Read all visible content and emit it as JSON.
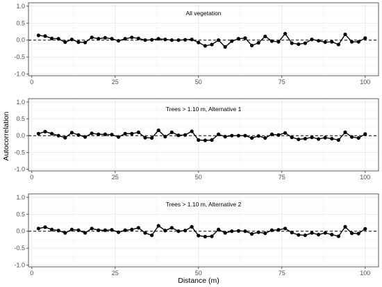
{
  "figure": {
    "ylabel": "Autocorrelation",
    "xlabel": "Distance (m)"
  },
  "chart_data": [
    {
      "type": "line",
      "title": "All vegetation",
      "xlabel": "",
      "ylabel": "",
      "xlim": [
        -1,
        104
      ],
      "ylim": [
        -1.05,
        1.1
      ],
      "xticks": [
        0,
        25,
        50,
        75,
        100
      ],
      "yticks": [
        -1.0,
        -0.5,
        0.0,
        0.5,
        1.0
      ],
      "reference_line": 0,
      "x": [
        2,
        4,
        6,
        8,
        10,
        12,
        14,
        16,
        18,
        20,
        22,
        24,
        26,
        28,
        30,
        32,
        34,
        36,
        38,
        40,
        42,
        44,
        46,
        48,
        50,
        52,
        54,
        56,
        58,
        60,
        62,
        64,
        66,
        68,
        70,
        72,
        74,
        76,
        78,
        80,
        82,
        84,
        86,
        88,
        90,
        92,
        94,
        96,
        98,
        100
      ],
      "values": [
        0.14,
        0.12,
        0.05,
        0.04,
        -0.06,
        0.02,
        -0.06,
        -0.07,
        0.08,
        0.04,
        0.07,
        0.04,
        -0.02,
        0.04,
        0.08,
        0.05,
        0.0,
        0.01,
        0.04,
        0.02,
        0.0,
        0.0,
        0.01,
        0.02,
        -0.07,
        -0.17,
        -0.13,
        0.0,
        -0.2,
        -0.03,
        0.04,
        0.06,
        -0.16,
        -0.08,
        0.11,
        -0.03,
        -0.05,
        0.19,
        -0.09,
        -0.12,
        -0.09,
        0.02,
        -0.02,
        -0.06,
        -0.05,
        -0.13,
        0.17,
        -0.05,
        -0.05,
        0.06
      ]
    },
    {
      "type": "line",
      "title": "Trees > 1.10 m, Alternative 1",
      "xlabel": "",
      "ylabel": "",
      "xlim": [
        -1,
        104
      ],
      "ylim": [
        -1.05,
        1.1
      ],
      "xticks": [
        0,
        25,
        50,
        75,
        100
      ],
      "yticks": [
        -1.0,
        -0.5,
        0.0,
        0.5,
        1.0
      ],
      "reference_line": 0,
      "x": [
        2,
        4,
        6,
        8,
        10,
        12,
        14,
        16,
        18,
        20,
        22,
        24,
        26,
        28,
        30,
        32,
        34,
        36,
        38,
        40,
        42,
        44,
        46,
        48,
        50,
        52,
        54,
        56,
        58,
        60,
        62,
        64,
        66,
        68,
        70,
        72,
        74,
        76,
        78,
        80,
        82,
        84,
        86,
        88,
        90,
        92,
        94,
        96,
        98,
        100
      ],
      "values": [
        0.06,
        0.12,
        0.06,
        0.0,
        -0.06,
        0.09,
        0.02,
        -0.04,
        0.07,
        0.04,
        0.04,
        0.03,
        -0.04,
        0.06,
        0.06,
        0.1,
        -0.06,
        -0.07,
        0.16,
        -0.03,
        0.1,
        0.01,
        0.02,
        0.13,
        -0.13,
        -0.14,
        -0.13,
        0.04,
        -0.03,
        0.0,
        0.0,
        0.0,
        -0.07,
        -0.01,
        -0.07,
        0.04,
        0.02,
        0.08,
        -0.05,
        -0.11,
        -0.09,
        -0.05,
        -0.1,
        -0.06,
        -0.09,
        -0.13,
        0.1,
        -0.04,
        -0.07,
        0.05
      ]
    },
    {
      "type": "line",
      "title": "Trees > 1.10 m, Alternative 2",
      "xlabel": "",
      "ylabel": "",
      "xlim": [
        -1,
        104
      ],
      "ylim": [
        -1.05,
        1.1
      ],
      "xticks": [
        0,
        25,
        50,
        75,
        100
      ],
      "yticks": [
        -1.0,
        -0.5,
        0.0,
        0.5,
        1.0
      ],
      "reference_line": 0,
      "x": [
        2,
        4,
        6,
        8,
        10,
        12,
        14,
        16,
        18,
        20,
        22,
        24,
        26,
        28,
        30,
        32,
        34,
        36,
        38,
        40,
        42,
        44,
        46,
        48,
        50,
        52,
        54,
        56,
        58,
        60,
        62,
        64,
        66,
        68,
        70,
        72,
        74,
        76,
        78,
        80,
        82,
        84,
        86,
        88,
        90,
        92,
        94,
        96,
        98,
        100
      ],
      "values": [
        0.08,
        0.12,
        0.05,
        0.02,
        -0.05,
        0.05,
        0.03,
        -0.05,
        0.08,
        0.03,
        0.03,
        0.04,
        -0.03,
        0.03,
        0.05,
        0.1,
        -0.05,
        -0.12,
        0.16,
        0.02,
        0.1,
        0.0,
        0.02,
        0.13,
        -0.13,
        -0.16,
        -0.15,
        0.05,
        -0.05,
        0.0,
        0.01,
        0.0,
        -0.08,
        -0.03,
        -0.06,
        0.03,
        0.04,
        0.08,
        -0.04,
        -0.11,
        -0.12,
        -0.05,
        -0.1,
        -0.05,
        -0.1,
        -0.15,
        0.13,
        -0.06,
        -0.07,
        0.07
      ]
    }
  ]
}
